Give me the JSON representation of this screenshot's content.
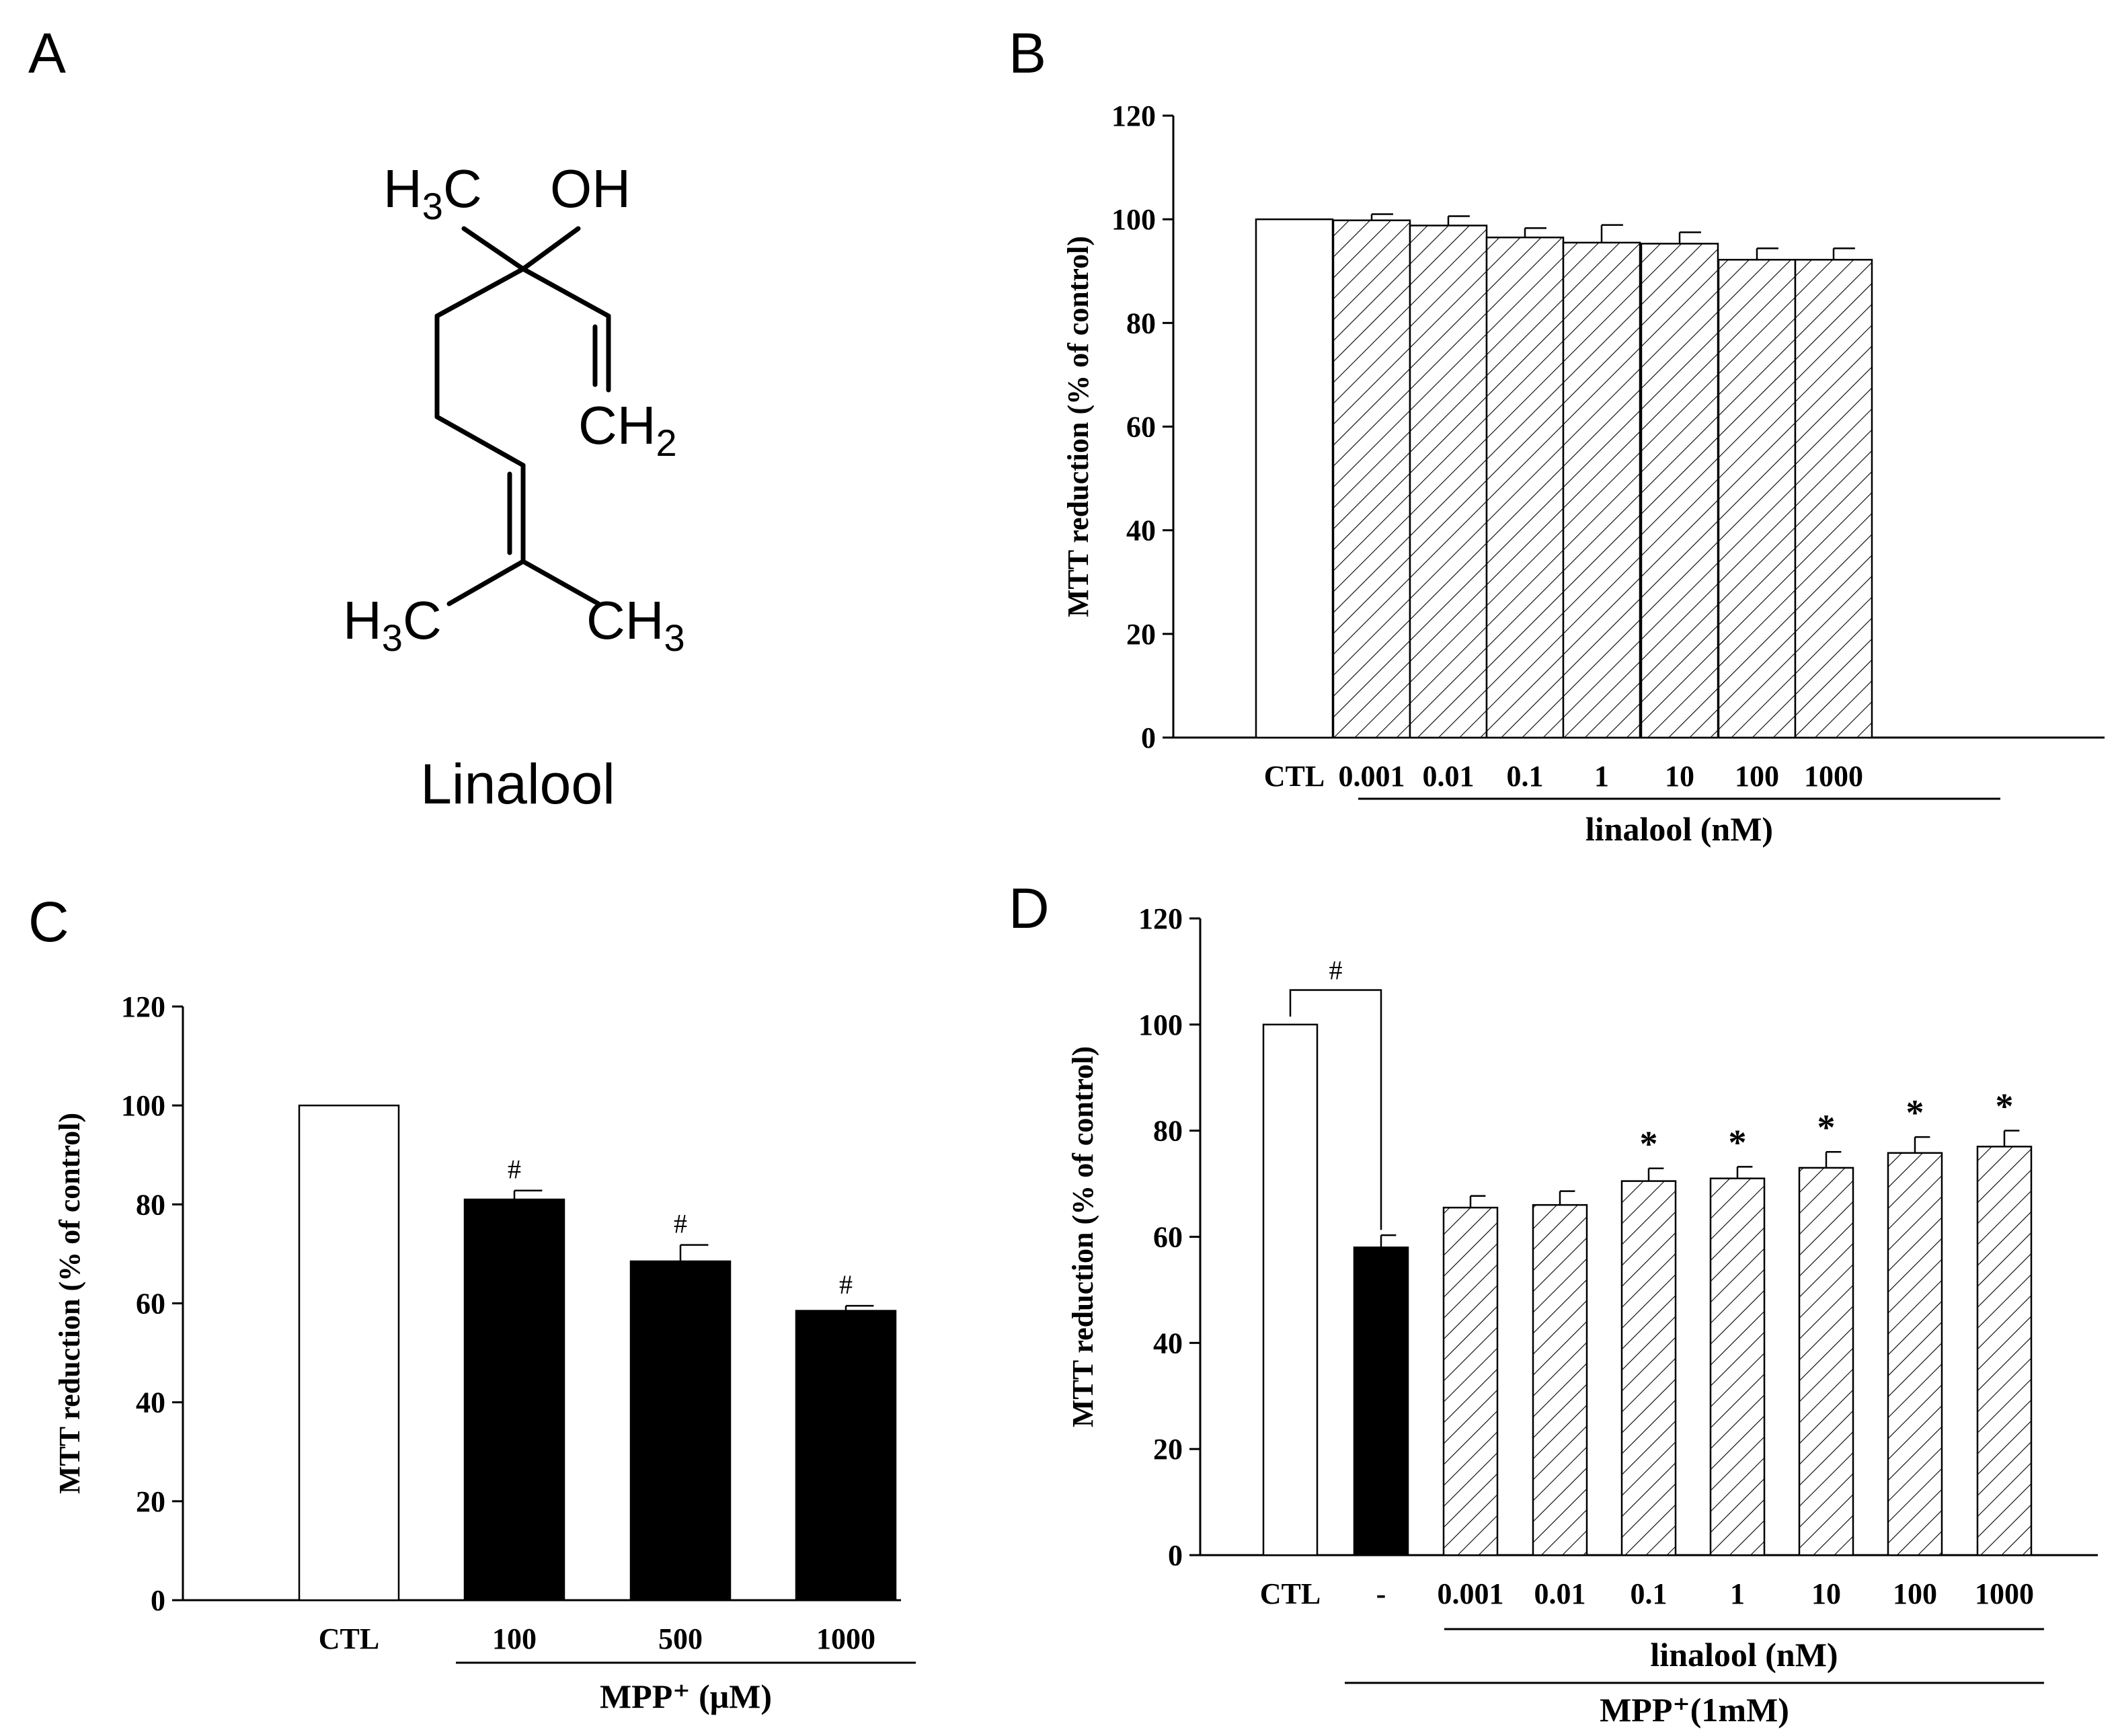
{
  "panels": {
    "A": {
      "label": "A",
      "compound_name": "Linalool",
      "atoms": {
        "h3c_top": "H",
        "h3c_top_sub": "3",
        "h3c_top_c": "C",
        "oh": "OH",
        "ch2": "CH",
        "ch2_sub": "2",
        "h3c_bottom": "H",
        "h3c_bottom_sub": "3",
        "h3c_bottom_c": "C",
        "ch3": "CH",
        "ch3_sub": "3"
      }
    },
    "B": {
      "label": "B"
    },
    "C": {
      "label": "C"
    },
    "D": {
      "label": "D"
    }
  },
  "colors": {
    "open_bar": "#ffffff",
    "mpp_bar": "#000000",
    "linalool_bar": "hatched"
  },
  "chart_data": [
    {
      "id": "B",
      "type": "bar",
      "ylabel": "MTT reduction (% of control)",
      "ylim": [
        0,
        120
      ],
      "yticks": [
        "0",
        "20",
        "40",
        "60",
        "80",
        "100",
        "120"
      ],
      "categories": [
        "CTL",
        "0.001",
        "0.01",
        "0.1",
        "1",
        "10",
        "100",
        "1000"
      ],
      "values": [
        100,
        99.8,
        98.8,
        96.5,
        95.5,
        95.3,
        92.2,
        92.2
      ],
      "errors": [
        0,
        1.2,
        1.8,
        1.8,
        3.4,
        2.2,
        2.2,
        2.2
      ],
      "fill": [
        "open",
        "hatch",
        "hatch",
        "hatch",
        "hatch",
        "hatch",
        "hatch",
        "hatch"
      ],
      "groups": [
        {
          "label": "linalool (nM)",
          "from": 1,
          "to": 7
        }
      ],
      "annotations": []
    },
    {
      "id": "C",
      "type": "bar",
      "ylabel": "MTT reduction (% of control)",
      "ylim": [
        0,
        120
      ],
      "yticks": [
        "0",
        "20",
        "40",
        "60",
        "80",
        "100",
        "120"
      ],
      "categories": [
        "CTL",
        "100",
        "500",
        "1000"
      ],
      "values": [
        100,
        81,
        68.5,
        58.5
      ],
      "errors": [
        0,
        1.8,
        3.3,
        1.0
      ],
      "fill": [
        "open",
        "solid",
        "solid",
        "solid"
      ],
      "groups": [
        {
          "label": "MPP⁺ (μM)",
          "from": 1,
          "to": 3
        }
      ],
      "annotations": [
        "",
        "#",
        "#",
        "#"
      ]
    },
    {
      "id": "D",
      "type": "bar",
      "ylabel": "MTT reduction (% of control)",
      "ylim": [
        0,
        120
      ],
      "yticks": [
        "0",
        "20",
        "40",
        "60",
        "80",
        "100",
        "120"
      ],
      "categories": [
        "CTL",
        "-",
        "0.001",
        "0.01",
        "0.1",
        "1",
        "10",
        "100",
        "1000"
      ],
      "values": [
        100,
        58,
        65.5,
        66,
        70.5,
        71,
        73,
        75.8,
        77
      ],
      "errors": [
        0,
        2.3,
        2.2,
        2.6,
        2.4,
        2.2,
        3.0,
        3.0,
        3.0
      ],
      "fill": [
        "open",
        "solid",
        "hatch",
        "hatch",
        "hatch",
        "hatch",
        "hatch",
        "hatch",
        "hatch"
      ],
      "groups": [
        {
          "label": "linalool (nM)",
          "from": 2,
          "to": 8
        },
        {
          "label": "MPP⁺(1mM)",
          "from": 1,
          "to": 8
        }
      ],
      "annotations": [
        "",
        "",
        "",
        "",
        "*",
        "*",
        "*",
        "*",
        "*"
      ],
      "bracket": {
        "from": 0,
        "to": 1,
        "label": "#"
      }
    }
  ]
}
